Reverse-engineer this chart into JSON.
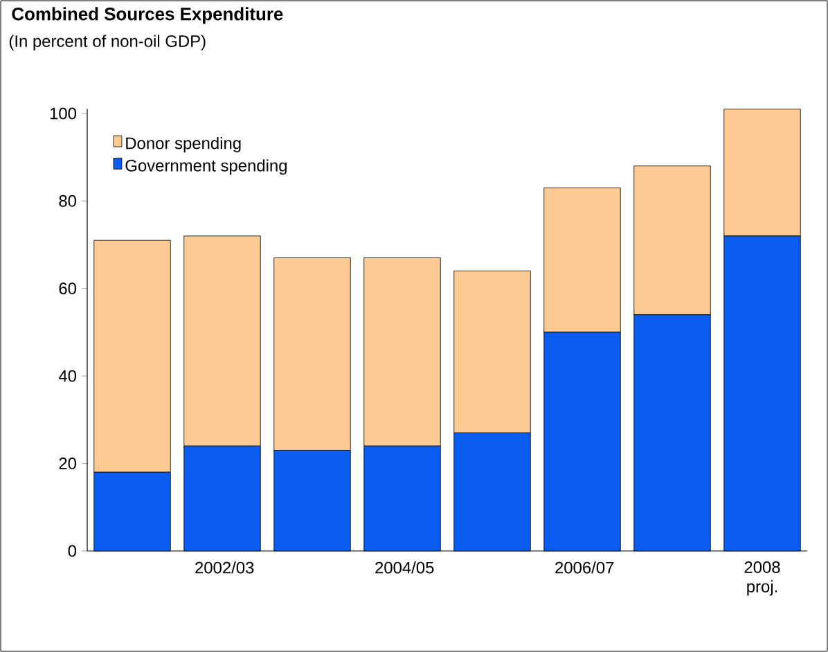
{
  "chart_data": {
    "type": "bar",
    "title": "Combined Sources Expenditure",
    "subtitle": "(In percent of non-oil GDP)",
    "categories": [
      null,
      "2002/03",
      null,
      "2004/05",
      null,
      "2006/07",
      null,
      "2008 proj."
    ],
    "stacked": true,
    "series": [
      {
        "name": "Government spending",
        "color": "#0b5df0",
        "values": [
          18,
          24,
          23,
          24,
          27,
          50,
          54,
          72
        ]
      },
      {
        "name": "Donor spending",
        "color": "#fcca92",
        "values": [
          53,
          48,
          44,
          43,
          37,
          33,
          34,
          29
        ]
      }
    ],
    "ylim": [
      0,
      101
    ],
    "yticks": [
      0,
      20,
      40,
      60,
      80,
      100
    ],
    "grid": false,
    "legend": "top left"
  }
}
